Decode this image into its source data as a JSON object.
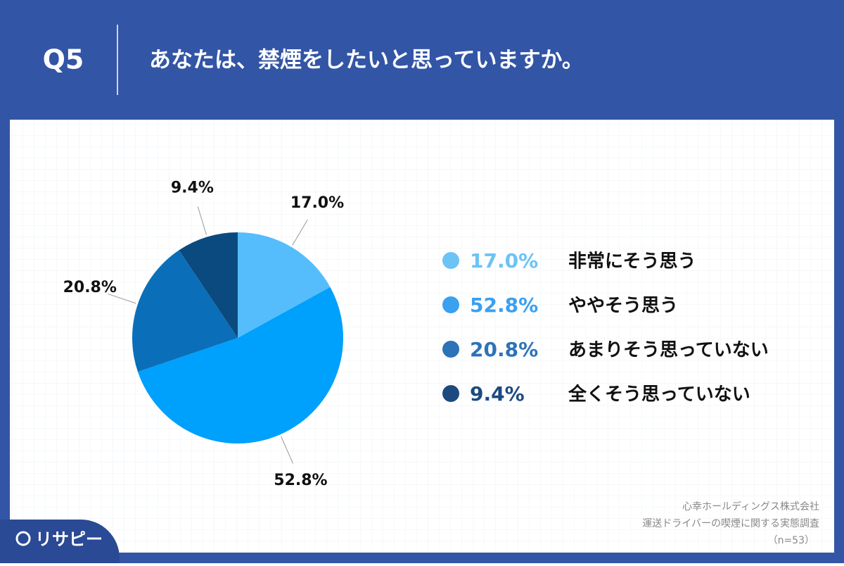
{
  "header": {
    "number": "Q5",
    "question": "あなたは、禁煙をしたいと思っていますか。"
  },
  "chart_data": {
    "type": "pie",
    "categories": [
      "非常にそう思う",
      "ややそう思う",
      "あまりそう思っていない",
      "全くそう思っていない"
    ],
    "values": [
      17.0,
      52.8,
      20.8,
      9.4
    ],
    "value_labels": [
      "17.0%",
      "52.8%",
      "20.8%",
      "9.4%"
    ],
    "colors": [
      "#55bdfc",
      "#00a0fd",
      "#0a6fb8",
      "#0b4a7e"
    ],
    "legend_colors": [
      "#6cc3f5",
      "#3aa0f0",
      "#2c73b8",
      "#1c4a80"
    ]
  },
  "source": {
    "company": "心幸ホールディングス株式会社",
    "survey": "運送ドライバーの喫煙に関する実態調査",
    "sample": "（n=53）"
  },
  "logo": "リサピー"
}
